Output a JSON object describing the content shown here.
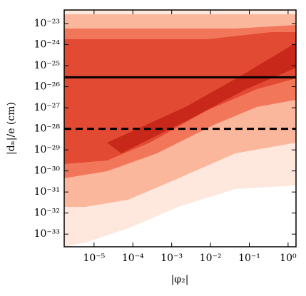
{
  "chart_data": {
    "type": "hexbin",
    "x_label": "|φ₂|",
    "y_label": "|dₙ|/e (cm)",
    "xscale": "log",
    "yscale": "log",
    "xlim": [
      1.7e-06,
      1.6
    ],
    "ylim": [
      2.5e-34,
      4.4e-23
    ],
    "xticks": [
      {
        "value": 1e-05,
        "label": "10⁻⁵"
      },
      {
        "value": 0.0001,
        "label": "10⁻⁴"
      },
      {
        "value": 0.001,
        "label": "10⁻³"
      },
      {
        "value": 0.01,
        "label": "10⁻²"
      },
      {
        "value": 0.1,
        "label": "10⁻¹"
      },
      {
        "value": 1,
        "label": "10⁰"
      }
    ],
    "yticks": [
      {
        "value": 1e-23,
        "label": "10⁻²³"
      },
      {
        "value": 1e-24,
        "label": "10⁻²⁴"
      },
      {
        "value": 1e-25,
        "label": "10⁻²⁵"
      },
      {
        "value": 1e-26,
        "label": "10⁻²⁶"
      },
      {
        "value": 1e-27,
        "label": "10⁻²⁷"
      },
      {
        "value": 1e-28,
        "label": "10⁻²⁸"
      },
      {
        "value": 1e-29,
        "label": "10⁻²⁹"
      },
      {
        "value": 1e-30,
        "label": "10⁻³⁰"
      },
      {
        "value": 1e-31,
        "label": "10⁻³¹"
      },
      {
        "value": 1e-32,
        "label": "10⁻³²"
      },
      {
        "value": 1e-33,
        "label": "10⁻³³"
      }
    ],
    "hlines": [
      {
        "value": 2.8e-26,
        "style": "solid",
        "color": "#000000"
      },
      {
        "value": 1e-28,
        "style": "dashed",
        "color": "#000000"
      }
    ],
    "color": "#e34a33"
  }
}
